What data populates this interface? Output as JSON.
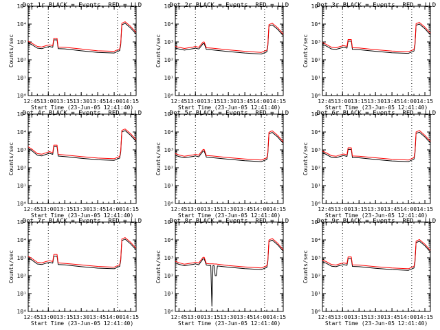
{
  "figure": {
    "background": "#ffffff",
    "axis_color": "#000000",
    "events_color": "#000000",
    "lld_color": "#ff0000",
    "xlabel": "Start Time (23-Jun-05 12:41:40)",
    "ylabel": "Counts/sec",
    "x_tick_labels": [
      "12:45",
      "13:00",
      "13:15",
      "13:30",
      "13:45",
      "14:00",
      "14:15"
    ],
    "y_tick_labels": [
      "10⁰",
      "10¹",
      "10²",
      "10³",
      "10⁴",
      "10⁵"
    ]
  },
  "chart_data": [
    {
      "type": "line",
      "title": "Det 1r BLACK = Events, RED = LLD",
      "xlim": [
        "12:41:40",
        "14:20"
      ],
      "ylim": [
        1,
        100000
      ],
      "yscale": "log",
      "dotted_x": [
        "13:00",
        "14:03"
      ],
      "series": [
        {
          "name": "Events",
          "color": "#000000",
          "x": [
            "12:41:40",
            "12:45",
            "12:50",
            "12:54",
            "12:58",
            "13:01",
            "13:04",
            "13:05",
            "13:08",
            "13:09",
            "13:15",
            "13:30",
            "13:45",
            "14:00",
            "14:05",
            "14:06",
            "14:07",
            "14:10",
            "14:15",
            "14:20"
          ],
          "values": [
            900,
            700,
            450,
            420,
            500,
            560,
            500,
            1300,
            1300,
            420,
            410,
            320,
            260,
            240,
            330,
            700,
            9000,
            11000,
            6000,
            2800
          ]
        },
        {
          "name": "LLD",
          "color": "#ff0000",
          "x": [
            "12:41:40",
            "12:45",
            "12:50",
            "12:54",
            "12:58",
            "13:01",
            "13:04",
            "13:05",
            "13:08",
            "13:09",
            "13:15",
            "13:30",
            "13:45",
            "14:00",
            "14:05",
            "14:06",
            "14:07",
            "14:10",
            "14:15",
            "14:20"
          ],
          "values": [
            1100,
            850,
            560,
            520,
            620,
            690,
            620,
            1600,
            1600,
            520,
            500,
            400,
            320,
            300,
            410,
            860,
            11000,
            13500,
            7400,
            3400
          ]
        }
      ]
    },
    {
      "type": "line",
      "title": "Det 2r BLACK = Events, RED = LLD",
      "xlim": [
        "12:41:40",
        "14:20"
      ],
      "ylim": [
        1,
        100000
      ],
      "yscale": "log",
      "dotted_x": [
        "13:00",
        "14:03"
      ],
      "series": [
        {
          "name": "Events",
          "color": "#000000",
          "x": [
            "12:41:40",
            "12:45",
            "12:50",
            "12:58",
            "13:00",
            "13:03",
            "13:07",
            "13:08",
            "13:10",
            "13:15",
            "13:30",
            "13:45",
            "14:00",
            "14:05",
            "14:06",
            "14:07",
            "14:10",
            "14:15",
            "14:20"
          ],
          "values": [
            450,
            400,
            350,
            420,
            450,
            400,
            800,
            800,
            380,
            360,
            290,
            240,
            210,
            280,
            600,
            7500,
            9000,
            5000,
            2200
          ]
        },
        {
          "name": "LLD",
          "color": "#ff0000",
          "x": [
            "12:41:40",
            "12:45",
            "12:50",
            "12:58",
            "13:00",
            "13:03",
            "13:07",
            "13:08",
            "13:10",
            "13:15",
            "13:30",
            "13:45",
            "14:00",
            "14:05",
            "14:06",
            "14:07",
            "14:10",
            "14:15",
            "14:20"
          ],
          "values": [
            560,
            500,
            430,
            520,
            560,
            500,
            990,
            990,
            470,
            450,
            360,
            300,
            260,
            350,
            740,
            9300,
            11100,
            6200,
            2700
          ]
        }
      ]
    },
    {
      "type": "line",
      "title": "Det 3r BLACK = Events, RED = LLD",
      "xlim": [
        "12:41:40",
        "14:20"
      ],
      "ylim": [
        1,
        100000
      ],
      "yscale": "log",
      "dotted_x": [
        "13:00",
        "14:03"
      ],
      "series": [
        {
          "name": "Events",
          "color": "#000000",
          "x": [
            "12:41:40",
            "12:45",
            "12:50",
            "12:54",
            "12:58",
            "13:01",
            "13:04",
            "13:05",
            "13:08",
            "13:09",
            "13:15",
            "13:30",
            "13:45",
            "14:00",
            "14:05",
            "14:06",
            "14:07",
            "14:10",
            "14:15",
            "14:20"
          ],
          "values": [
            750,
            600,
            400,
            380,
            450,
            500,
            450,
            1100,
            1100,
            380,
            370,
            300,
            250,
            230,
            310,
            650,
            8500,
            10000,
            5500,
            2500
          ]
        },
        {
          "name": "LLD",
          "color": "#ff0000",
          "x": [
            "12:41:40",
            "12:45",
            "12:50",
            "12:54",
            "12:58",
            "13:01",
            "13:04",
            "13:05",
            "13:08",
            "13:09",
            "13:15",
            "13:30",
            "13:45",
            "14:00",
            "14:05",
            "14:06",
            "14:07",
            "14:10",
            "14:15",
            "14:20"
          ],
          "values": [
            930,
            740,
            500,
            470,
            560,
            620,
            560,
            1360,
            1360,
            470,
            460,
            370,
            310,
            285,
            380,
            800,
            10500,
            12400,
            6800,
            3100
          ]
        }
      ]
    },
    {
      "type": "line",
      "title": "Det 4r BLACK = Events, RED = LLD",
      "xlim": [
        "12:41:40",
        "14:20"
      ],
      "ylim": [
        1,
        100000
      ],
      "yscale": "log",
      "dotted_x": [
        "13:00",
        "14:03"
      ],
      "series": [
        {
          "name": "Events",
          "color": "#000000",
          "x": [
            "12:41:40",
            "12:45",
            "12:50",
            "12:54",
            "12:58",
            "13:01",
            "13:04",
            "13:05",
            "13:08",
            "13:09",
            "13:15",
            "13:30",
            "13:45",
            "14:00",
            "14:05",
            "14:06",
            "14:07",
            "14:10",
            "14:15",
            "14:20"
          ],
          "values": [
            1200,
            900,
            500,
            460,
            560,
            650,
            560,
            1500,
            1500,
            450,
            420,
            340,
            280,
            260,
            350,
            750,
            10000,
            12000,
            6500,
            3000
          ]
        },
        {
          "name": "LLD",
          "color": "#ff0000",
          "x": [
            "12:41:40",
            "12:45",
            "12:50",
            "12:54",
            "12:58",
            "13:01",
            "13:04",
            "13:05",
            "13:08",
            "13:09",
            "13:15",
            "13:30",
            "13:45",
            "14:00",
            "14:05",
            "14:06",
            "14:07",
            "14:10",
            "14:15",
            "14:20"
          ],
          "values": [
            1480,
            1100,
            620,
            570,
            690,
            800,
            690,
            1850,
            1850,
            560,
            520,
            420,
            350,
            320,
            430,
            920,
            12300,
            14800,
            8000,
            3700
          ]
        }
      ]
    },
    {
      "type": "line",
      "title": "Det 5r BLACK = Events, RED = LLD",
      "xlim": [
        "12:41:40",
        "14:20"
      ],
      "ylim": [
        1,
        100000
      ],
      "yscale": "log",
      "dotted_x": [
        "13:00",
        "14:03"
      ],
      "series": [
        {
          "name": "Events",
          "color": "#000000",
          "x": [
            "12:41:40",
            "12:45",
            "12:50",
            "12:58",
            "13:00",
            "13:03",
            "13:07",
            "13:08",
            "13:10",
            "13:15",
            "13:30",
            "13:45",
            "14:00",
            "14:05",
            "14:06",
            "14:07",
            "14:10",
            "14:15",
            "14:20"
          ],
          "values": [
            500,
            420,
            360,
            430,
            460,
            410,
            850,
            850,
            390,
            370,
            300,
            250,
            220,
            290,
            620,
            7800,
            9500,
            5200,
            2300
          ]
        },
        {
          "name": "LLD",
          "color": "#ff0000",
          "x": [
            "12:41:40",
            "12:45",
            "12:50",
            "12:58",
            "13:00",
            "13:03",
            "13:07",
            "13:08",
            "13:10",
            "13:15",
            "13:30",
            "13:45",
            "14:00",
            "14:05",
            "14:06",
            "14:07",
            "14:10",
            "14:15",
            "14:20"
          ],
          "values": [
            620,
            520,
            440,
            530,
            570,
            510,
            1050,
            1050,
            480,
            460,
            370,
            310,
            270,
            360,
            760,
            9600,
            11700,
            6400,
            2800
          ]
        }
      ]
    },
    {
      "type": "line",
      "title": "Det 6r BLACK = Events, RED = LLD",
      "xlim": [
        "12:41:40",
        "14:20"
      ],
      "ylim": [
        1,
        100000
      ],
      "yscale": "log",
      "dotted_x": [
        "13:00",
        "14:03"
      ],
      "series": [
        {
          "name": "Events",
          "color": "#000000",
          "x": [
            "12:41:40",
            "12:45",
            "12:50",
            "12:54",
            "12:58",
            "13:01",
            "13:04",
            "13:05",
            "13:08",
            "13:09",
            "13:15",
            "13:30",
            "13:45",
            "14:00",
            "14:05",
            "14:06",
            "14:07",
            "14:10",
            "14:15",
            "14:20"
          ],
          "values": [
            700,
            560,
            380,
            360,
            430,
            480,
            430,
            1050,
            1050,
            370,
            360,
            290,
            240,
            220,
            300,
            630,
            8200,
            9800,
            5300,
            2400
          ]
        },
        {
          "name": "LLD",
          "color": "#ff0000",
          "x": [
            "12:41:40",
            "12:45",
            "12:50",
            "12:54",
            "12:58",
            "13:01",
            "13:04",
            "13:05",
            "13:08",
            "13:09",
            "13:15",
            "13:30",
            "13:45",
            "14:00",
            "14:05",
            "14:06",
            "14:07",
            "14:10",
            "14:15",
            "14:20"
          ],
          "values": [
            860,
            690,
            470,
            440,
            530,
            590,
            530,
            1300,
            1300,
            455,
            440,
            360,
            300,
            270,
            370,
            780,
            10100,
            12100,
            6500,
            3000
          ]
        }
      ]
    },
    {
      "type": "line",
      "title": "Det 7r BLACK = Events, RED = LLD",
      "xlim": [
        "12:41:40",
        "14:20"
      ],
      "ylim": [
        1,
        100000
      ],
      "yscale": "log",
      "dotted_x": [
        "13:00",
        "14:03"
      ],
      "series": [
        {
          "name": "Events",
          "color": "#000000",
          "x": [
            "12:41:40",
            "12:45",
            "12:50",
            "12:54",
            "12:58",
            "13:01",
            "13:04",
            "13:05",
            "13:08",
            "13:09",
            "13:15",
            "13:30",
            "13:45",
            "14:00",
            "14:05",
            "14:06",
            "14:07",
            "14:10",
            "14:15",
            "14:20"
          ],
          "values": [
            1000,
            750,
            450,
            420,
            500,
            560,
            500,
            1250,
            1250,
            420,
            400,
            320,
            265,
            245,
            335,
            700,
            9200,
            11000,
            6000,
            2800
          ]
        },
        {
          "name": "LLD",
          "color": "#ff0000",
          "x": [
            "12:41:40",
            "12:45",
            "12:50",
            "12:54",
            "12:58",
            "13:01",
            "13:04",
            "13:05",
            "13:08",
            "13:09",
            "13:15",
            "13:30",
            "13:45",
            "14:00",
            "14:05",
            "14:06",
            "14:07",
            "14:10",
            "14:15",
            "14:20"
          ],
          "values": [
            1230,
            920,
            560,
            520,
            620,
            690,
            620,
            1540,
            1540,
            520,
            490,
            400,
            330,
            300,
            410,
            860,
            11300,
            13500,
            7400,
            3400
          ]
        }
      ]
    },
    {
      "type": "line",
      "title": "Det 8r BLACK = Events, RED = LLD",
      "xlim": [
        "12:41:40",
        "14:20"
      ],
      "ylim": [
        1,
        100000
      ],
      "yscale": "log",
      "dotted_x": [
        "13:00",
        "14:03"
      ],
      "series": [
        {
          "name": "Events",
          "color": "#000000",
          "x": [
            "12:41:40",
            "12:45",
            "12:50",
            "12:58",
            "13:00",
            "13:03",
            "13:07",
            "13:08",
            "13:10",
            "13:13",
            "13:14",
            "13:15",
            "13:16",
            "13:17",
            "13:18",
            "13:19",
            "13:20",
            "13:30",
            "13:45",
            "14:00",
            "14:05",
            "14:06",
            "14:07",
            "14:10",
            "14:15",
            "14:20"
          ],
          "values": [
            520,
            430,
            360,
            430,
            460,
            410,
            870,
            870,
            390,
            370,
            370,
            2,
            370,
            360,
            100,
            100,
            350,
            300,
            250,
            220,
            290,
            620,
            8000,
            9800,
            5300,
            2300
          ]
        },
        {
          "name": "LLD",
          "color": "#ff0000",
          "x": [
            "12:41:40",
            "12:45",
            "12:50",
            "12:58",
            "13:00",
            "13:03",
            "13:07",
            "13:08",
            "13:10",
            "13:13",
            "13:14",
            "13:15",
            "13:16",
            "13:17",
            "13:18",
            "13:19",
            "13:20",
            "13:30",
            "13:45",
            "14:00",
            "14:05",
            "14:06",
            "14:07",
            "14:10",
            "14:15",
            "14:20"
          ],
          "values": [
            640,
            530,
            440,
            530,
            570,
            510,
            1070,
            1070,
            480,
            460,
            460,
            460,
            460,
            450,
            450,
            450,
            440,
            370,
            310,
            270,
            360,
            760,
            9800,
            12000,
            6500,
            2800
          ]
        }
      ]
    },
    {
      "type": "line",
      "title": "Det 9r BLACK = Events, RED = LLD",
      "xlim": [
        "12:41:40",
        "14:20"
      ],
      "ylim": [
        1,
        100000
      ],
      "yscale": "log",
      "dotted_x": [
        "13:00",
        "14:03"
      ],
      "series": [
        {
          "name": "Events",
          "color": "#000000",
          "x": [
            "12:41:40",
            "12:45",
            "12:50",
            "12:54",
            "12:58",
            "13:01",
            "13:04",
            "13:05",
            "13:08",
            "13:09",
            "13:15",
            "13:30",
            "13:45",
            "14:00",
            "14:05",
            "14:06",
            "14:07",
            "14:10",
            "14:15",
            "14:20"
          ],
          "values": [
            600,
            500,
            340,
            320,
            380,
            420,
            380,
            900,
            900,
            330,
            320,
            260,
            220,
            200,
            270,
            560,
            7000,
            8500,
            4700,
            2100
          ]
        },
        {
          "name": "LLD",
          "color": "#ff0000",
          "x": [
            "12:41:40",
            "12:45",
            "12:50",
            "12:54",
            "12:58",
            "13:01",
            "13:04",
            "13:05",
            "13:08",
            "13:09",
            "13:15",
            "13:30",
            "13:45",
            "14:00",
            "14:05",
            "14:06",
            "14:07",
            "14:10",
            "14:15",
            "14:20"
          ],
          "values": [
            740,
            620,
            420,
            395,
            470,
            520,
            470,
            1110,
            1110,
            405,
            395,
            320,
            270,
            245,
            330,
            690,
            8600,
            10500,
            5800,
            2600
          ]
        }
      ]
    }
  ]
}
